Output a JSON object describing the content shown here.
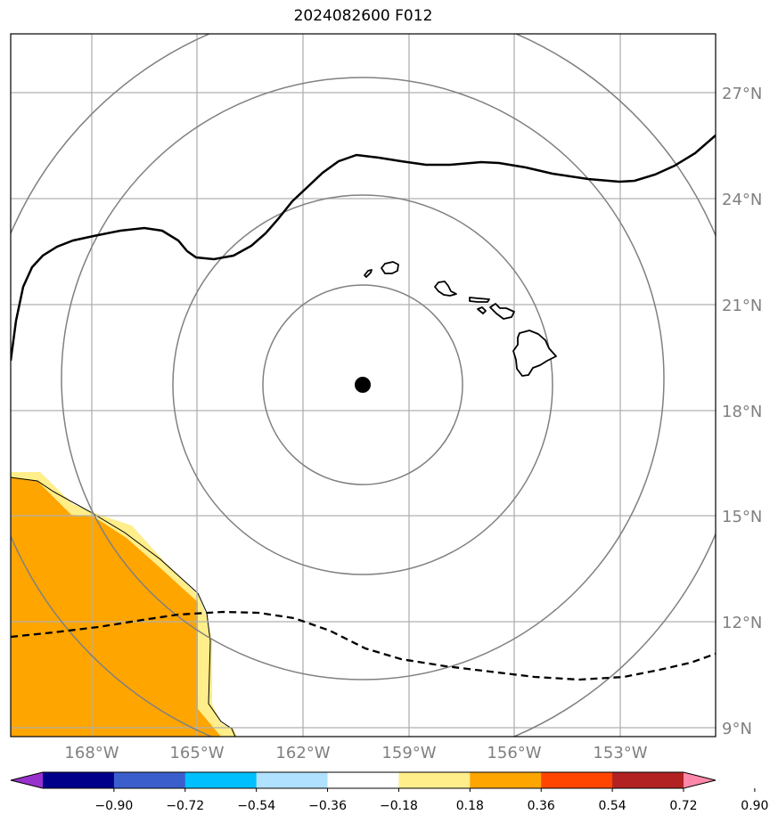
{
  "title": "2024082600 F012",
  "map": {
    "lat_labels": [
      "27°N",
      "24°N",
      "21°N",
      "18°N",
      "15°N",
      "12°N",
      "9°N"
    ],
    "lon_labels": [
      "168°W",
      "165°W",
      "162°W",
      "159°W",
      "156°W",
      "153°W"
    ],
    "grid_color": "#b0b0b0",
    "ring_color": "#808080",
    "center_marker": "storm-center-dot",
    "fill_colors": {
      "light": "#ffee8a",
      "orange": "#ffa500"
    }
  },
  "colorbar": {
    "colors": [
      "#9932cc",
      "#00008b",
      "#3a5fcd",
      "#00bfff",
      "#b0e2ff",
      "#ffffff",
      "#ffee8a",
      "#ffa500",
      "#ff4500",
      "#b22222",
      "#ff88aa"
    ],
    "tick_labels": [
      "−0.90",
      "−0.72",
      "−0.54",
      "−0.36",
      "−0.18",
      "0.18",
      "0.36",
      "0.54",
      "0.72",
      "0.90"
    ]
  }
}
